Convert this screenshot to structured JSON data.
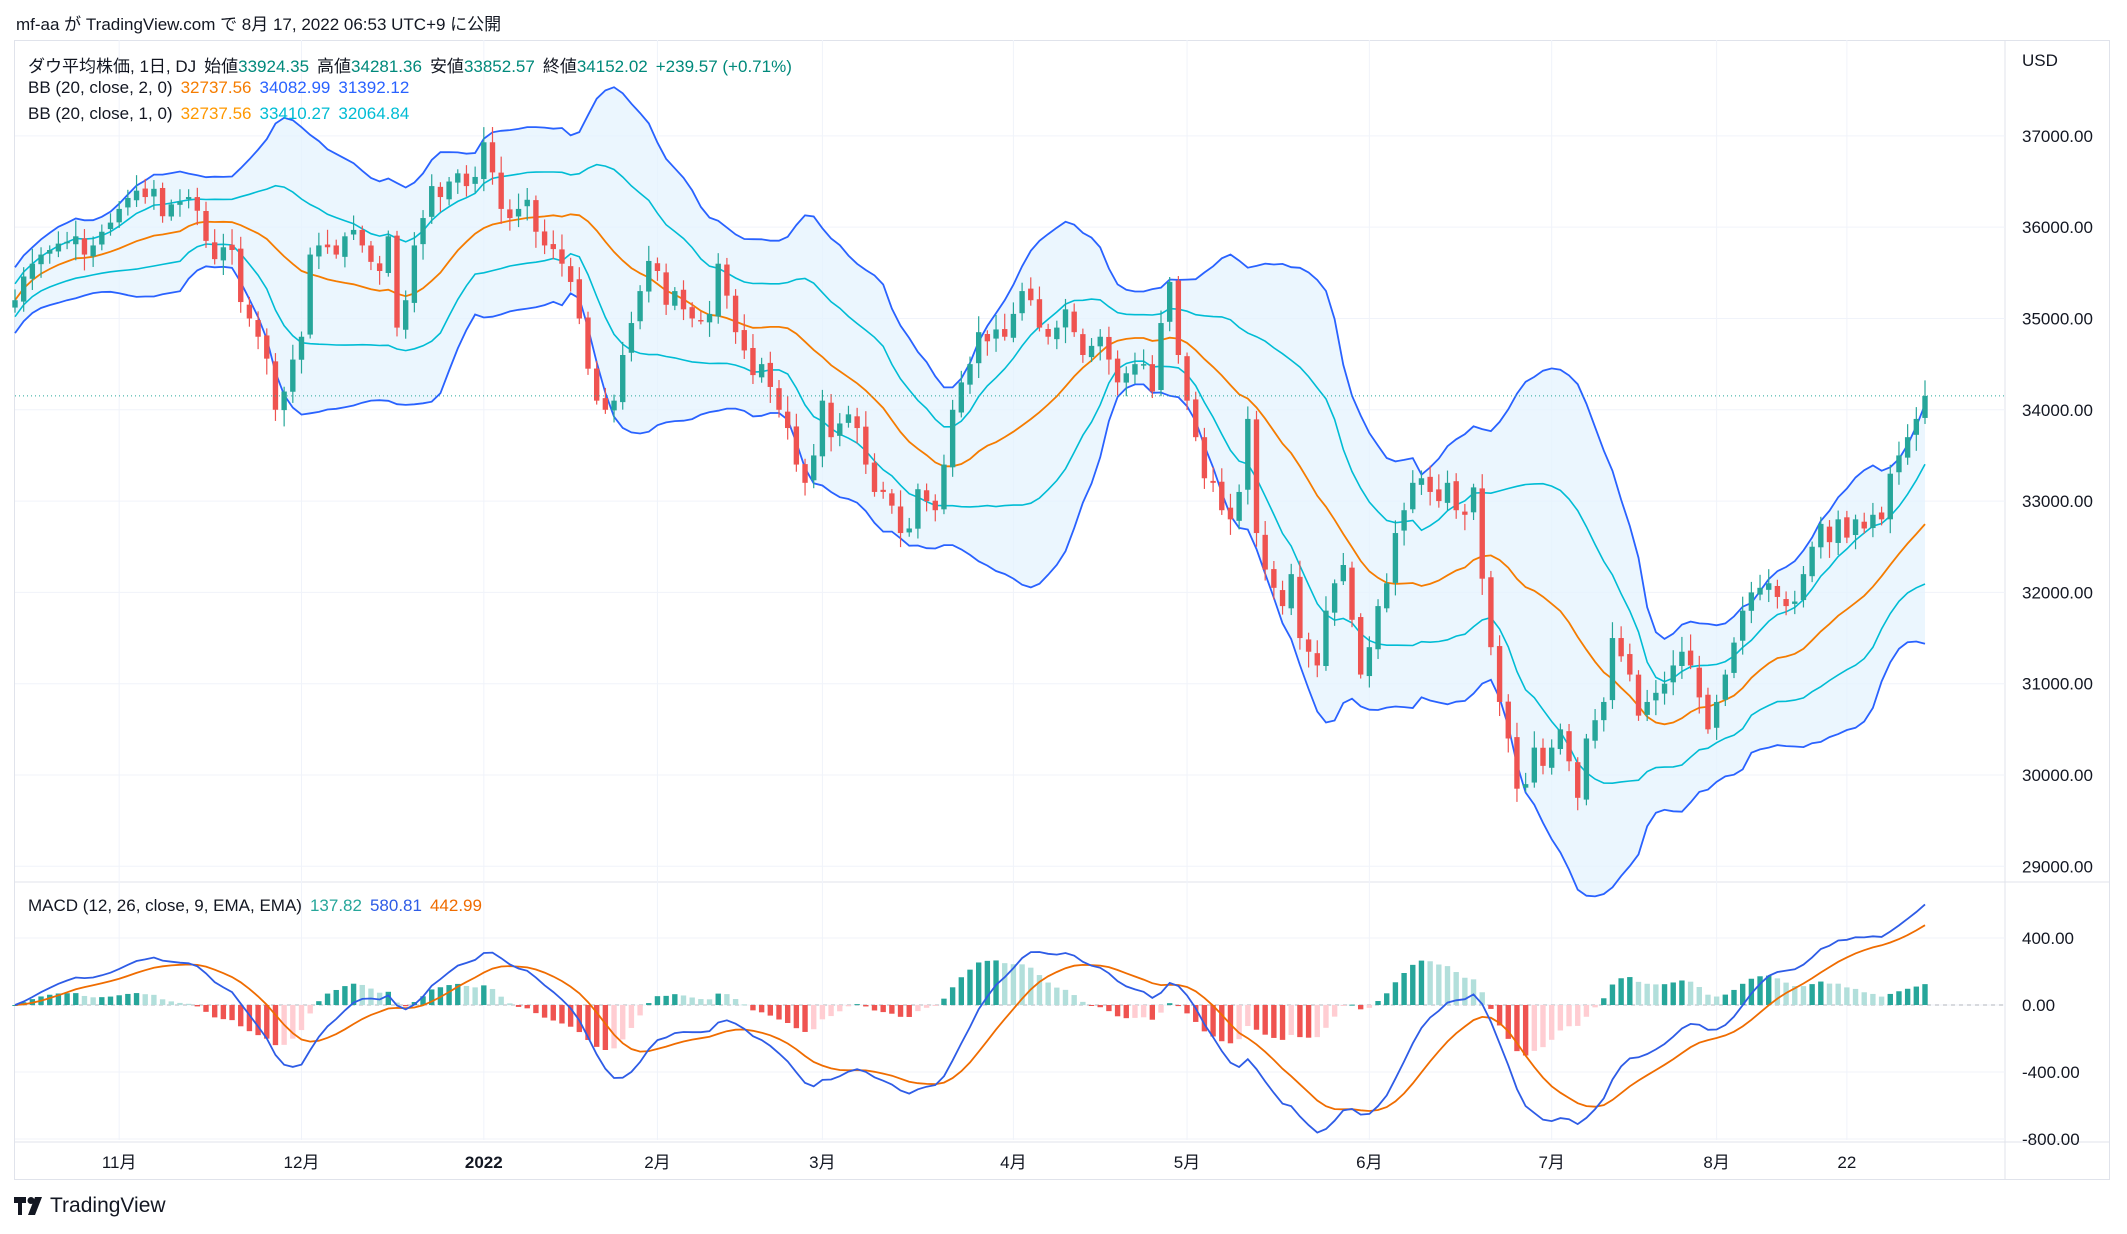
{
  "attribution": "mf-aa が TradingView.com で 8月 17, 2022 06:53 UTC+9 に公開",
  "legend": {
    "main": {
      "title": "ダウ平均株価, 1日, DJ",
      "open_label": "始値",
      "open": "33924.35",
      "high_label": "高値",
      "high": "34281.36",
      "low_label": "安値",
      "low": "33852.57",
      "close_label": "終値",
      "close": "34152.02",
      "change": "+239.57 (+0.71%)"
    },
    "bb2": {
      "title": "BB (20, close, 2, 0)",
      "basis": "32737.56",
      "upper": "34082.99",
      "lower": "31392.12"
    },
    "bb1": {
      "title": "BB (20, close, 1, 0)",
      "basis": "32737.56",
      "upper": "33410.27",
      "lower": "32064.84"
    },
    "macd": {
      "title": "MACD (12, 26, close, 9, EMA, EMA)",
      "hist": "137.82",
      "macd": "580.81",
      "signal": "442.99"
    }
  },
  "currency": "USD",
  "footer": "TradingView",
  "colors": {
    "up": "#26a69a",
    "down": "#ef5350",
    "bb2_band": "#2962ff",
    "bb1_band": "#00bcd4",
    "basis": "#f57c00",
    "fill": "#e3f2fd",
    "macd": "#2e5ce6",
    "signal": "#ef6c00",
    "hist_up_strong": "#26a69a",
    "hist_up_weak": "#b2dfdb",
    "hist_down_strong": "#ef5350",
    "hist_down_weak": "#ffcdd2"
  },
  "chart_data": [
    {
      "type": "candlestick",
      "title": "ダウ平均株価, 1日, DJ",
      "y_axis": {
        "ticks": [
          29000,
          30000,
          31000,
          32000,
          33000,
          34000,
          35000,
          36000,
          37000
        ],
        "tick_labels": [
          "29000.00",
          "30000.00",
          "31000.00",
          "32000.00",
          "33000.00",
          "34000.00",
          "35000.00",
          "36000.00",
          "37000.00"
        ],
        "range": [
          28850,
          38050
        ]
      },
      "x_axis": {
        "tick_labels": [
          "11月",
          "12月",
          "2022",
          "2月",
          "3月",
          "4月",
          "5月",
          "6月",
          "7月",
          "8月",
          "22"
        ],
        "tick_index": [
          12,
          33,
          54,
          74,
          93,
          115,
          135,
          156,
          177,
          196,
          211
        ]
      },
      "last_price": 34152.02,
      "closes": [
        35200,
        35460,
        35600,
        35700,
        35750,
        35820,
        35840,
        35900,
        35700,
        35800,
        35950,
        36050,
        36200,
        36320,
        36400,
        36330,
        36420,
        36120,
        36250,
        36280,
        36330,
        36180,
        35850,
        35650,
        35780,
        35750,
        35180,
        35000,
        34800,
        34560,
        34000,
        34200,
        34550,
        34800,
        35700,
        35800,
        35780,
        35700,
        35900,
        35970,
        35800,
        35620,
        35520,
        35900,
        34900,
        35200,
        35800,
        36100,
        36450,
        36330,
        36500,
        36590,
        36450,
        36550,
        36930,
        36600,
        36200,
        36100,
        36200,
        36300,
        35950,
        35800,
        35760,
        35600,
        35400,
        35000,
        34450,
        34100,
        34000,
        34100,
        34600,
        34950,
        35300,
        35630,
        35520,
        35150,
        35300,
        35100,
        35000,
        34980,
        35050,
        35600,
        35250,
        34850,
        34650,
        34380,
        34500,
        34250,
        34000,
        33800,
        33400,
        33200,
        33500,
        34100,
        33700,
        33850,
        33950,
        33800,
        33400,
        33100,
        33100,
        32950,
        32650,
        32700,
        33130,
        33000,
        32900,
        33400,
        34000,
        34300,
        34500,
        34850,
        34750,
        34880,
        34800,
        35050,
        35300,
        35200,
        34900,
        34800,
        34900,
        35100,
        34850,
        34600,
        34700,
        34800,
        34550,
        34300,
        34400,
        34500,
        34500,
        34200,
        34950,
        35400,
        34600,
        34100,
        33700,
        33250,
        33200,
        32900,
        32800,
        33100,
        33900,
        32650,
        32250,
        32050,
        31850,
        32200,
        31500,
        31350,
        31200,
        31800,
        32100,
        32300,
        31700,
        31100,
        31400,
        31850,
        32100,
        32650,
        32900,
        33200,
        33250,
        33100,
        33000,
        33200,
        32900,
        32850,
        33150,
        32150,
        31400,
        30800,
        30400,
        29850,
        29900,
        30300,
        30100,
        30300,
        30500,
        30150,
        29750,
        30400,
        30600,
        30800,
        31500,
        31300,
        31100,
        30650,
        30800,
        30900,
        31000,
        31200,
        31350,
        31200,
        30850,
        30500,
        30800,
        31100,
        31450,
        31800,
        32000,
        32050,
        32100,
        31950,
        31850,
        31900,
        32200,
        32500,
        32750,
        32550,
        32800,
        32600,
        32800,
        32700,
        32850,
        32800,
        33300,
        33500,
        33700,
        33900,
        34152.02
      ]
    },
    {
      "type": "line",
      "title": "MACD (12, 26, close, 9, EMA, EMA)",
      "y_axis": {
        "ticks": [
          -800,
          -400,
          0,
          400
        ],
        "tick_labels": [
          "-800.00",
          "-400.00",
          "0.00",
          "400.00"
        ]
      },
      "last_values": {
        "histogram": 137.82,
        "macd": 580.81,
        "signal": 442.99
      }
    }
  ]
}
